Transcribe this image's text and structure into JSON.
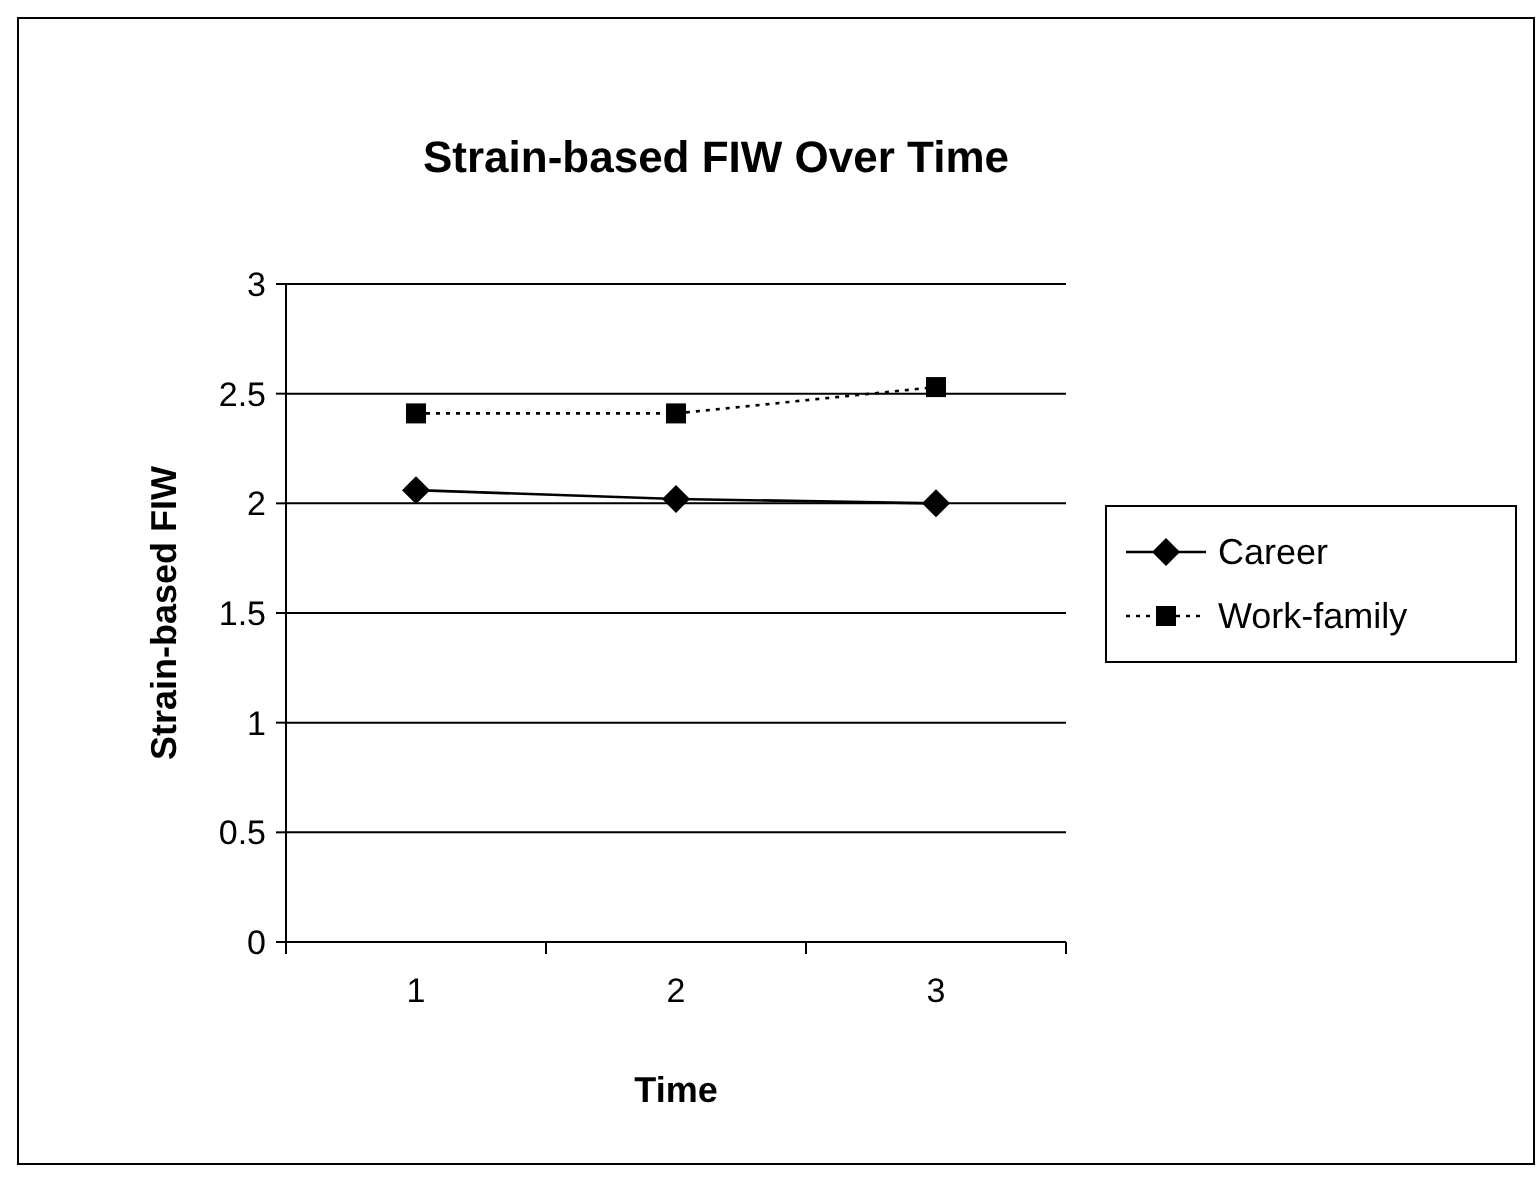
{
  "chart_data": {
    "type": "line",
    "title": "Strain-based FIW Over Time",
    "xlabel": "Time",
    "ylabel": "Strain-based FIW",
    "categories": [
      "1",
      "2",
      "3"
    ],
    "series": [
      {
        "name": "Career",
        "color": "#000000",
        "values": [
          2.06,
          2.02,
          2.0
        ],
        "marker": "diamond",
        "line_style": "solid"
      },
      {
        "name": "Work-family",
        "color": "#000000",
        "values": [
          2.41,
          2.41,
          2.53
        ],
        "marker": "square",
        "line_style": "dotted"
      }
    ],
    "ylim": [
      0,
      3
    ],
    "yticks": [
      0,
      0.5,
      1,
      1.5,
      2,
      2.5,
      3
    ],
    "grid": "y",
    "legend": "right"
  }
}
